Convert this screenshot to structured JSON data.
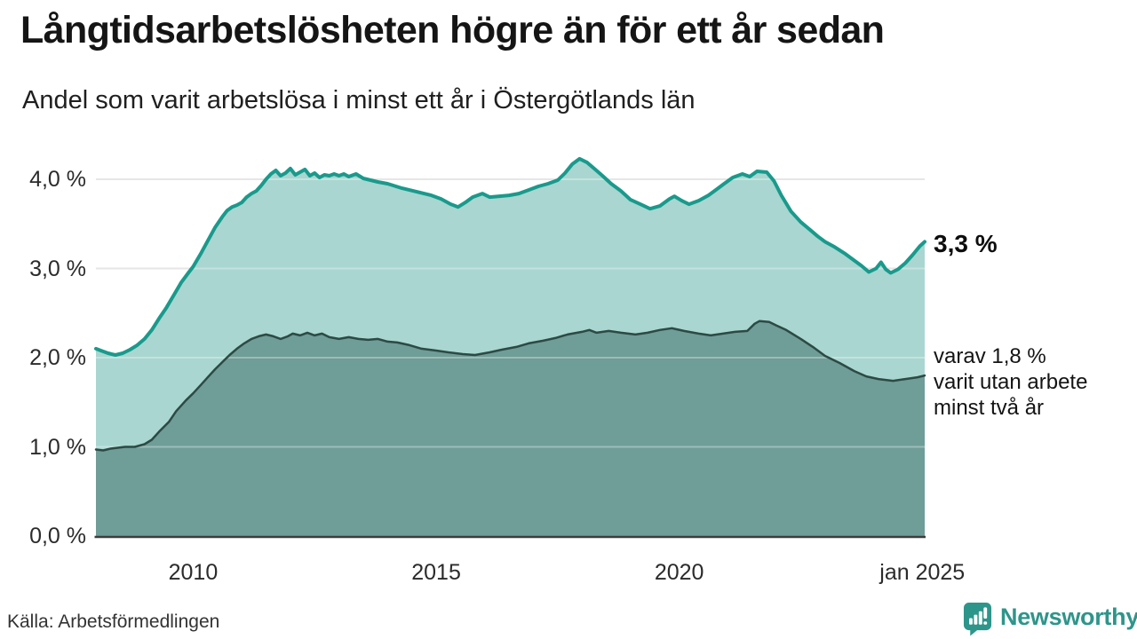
{
  "header": {
    "title": "Långtidsarbetslösheten högre än för ett år sedan",
    "subtitle": "Andel som varit arbetslösa i minst ett år i Östergötlands län"
  },
  "annotations": {
    "total_value_label": "3,3 %",
    "secondary_value_lines": [
      "varav 1,8 %",
      "varit utan arbete",
      "minst två år"
    ]
  },
  "footer": {
    "source": "Källa: Arbetsförmedlingen",
    "brand": "Newsworthy"
  },
  "colors": {
    "total_line": "#199A8C",
    "total_fill": "#A9D6D0",
    "secondary_line": "#2C4A45",
    "secondary_fill": "#6F9D97",
    "gridline": "#DBDBDB",
    "gridline_overlay": "rgba(255,255,255,0.32)",
    "baseline": "#3D3D3D",
    "brand_teal": "#2E958A",
    "title_text": "#151515",
    "axis_text": "#2B2B2B"
  },
  "chart_data": {
    "type": "area",
    "title": "Andel som varit arbetslösa i minst ett år i Östergötlands län",
    "xlabel": "",
    "ylabel": "",
    "x_unit": "year",
    "x_range": [
      2008.0,
      2025.05
    ],
    "ylim": [
      0,
      4.3
    ],
    "grid": true,
    "legend_position": "none",
    "y_ticks": [
      {
        "value": 0,
        "label": "0,0 %"
      },
      {
        "value": 1,
        "label": "1,0 %"
      },
      {
        "value": 2,
        "label": "2,0 %"
      },
      {
        "value": 3,
        "label": "3,0 %"
      },
      {
        "value": 4,
        "label": "4,0 %"
      }
    ],
    "x_ticks": [
      {
        "value": 2010,
        "label": "2010"
      },
      {
        "value": 2015,
        "label": "2015"
      },
      {
        "value": 2020,
        "label": "2020"
      },
      {
        "value": 2025,
        "label": "jan 2025"
      }
    ],
    "series": [
      {
        "id": "total",
        "name": "Arbetslösa minst ett år",
        "end_label": "3,3 %",
        "color": "#199A8C",
        "fill": "#A9D6D0",
        "points": [
          [
            2008.0,
            2.1
          ],
          [
            2008.1,
            2.08
          ],
          [
            2008.25,
            2.05
          ],
          [
            2008.4,
            2.03
          ],
          [
            2008.55,
            2.05
          ],
          [
            2008.7,
            2.09
          ],
          [
            2008.85,
            2.14
          ],
          [
            2009.0,
            2.21
          ],
          [
            2009.15,
            2.31
          ],
          [
            2009.3,
            2.44
          ],
          [
            2009.45,
            2.56
          ],
          [
            2009.6,
            2.7
          ],
          [
            2009.75,
            2.84
          ],
          [
            2009.9,
            2.95
          ],
          [
            2010.0,
            3.02
          ],
          [
            2010.15,
            3.16
          ],
          [
            2010.3,
            3.31
          ],
          [
            2010.45,
            3.46
          ],
          [
            2010.6,
            3.58
          ],
          [
            2010.7,
            3.65
          ],
          [
            2010.8,
            3.69
          ],
          [
            2010.9,
            3.71
          ],
          [
            2011.0,
            3.74
          ],
          [
            2011.1,
            3.8
          ],
          [
            2011.2,
            3.84
          ],
          [
            2011.3,
            3.87
          ],
          [
            2011.4,
            3.93
          ],
          [
            2011.5,
            4.0
          ],
          [
            2011.6,
            4.06
          ],
          [
            2011.7,
            4.1
          ],
          [
            2011.8,
            4.04
          ],
          [
            2011.9,
            4.07
          ],
          [
            2012.0,
            4.12
          ],
          [
            2012.1,
            4.05
          ],
          [
            2012.2,
            4.08
          ],
          [
            2012.3,
            4.11
          ],
          [
            2012.4,
            4.04
          ],
          [
            2012.5,
            4.07
          ],
          [
            2012.6,
            4.02
          ],
          [
            2012.7,
            4.05
          ],
          [
            2012.8,
            4.04
          ],
          [
            2012.9,
            4.06
          ],
          [
            2013.0,
            4.04
          ],
          [
            2013.1,
            4.06
          ],
          [
            2013.2,
            4.03
          ],
          [
            2013.35,
            4.06
          ],
          [
            2013.5,
            4.01
          ],
          [
            2013.65,
            3.99
          ],
          [
            2013.8,
            3.97
          ],
          [
            2014.0,
            3.95
          ],
          [
            2014.3,
            3.9
          ],
          [
            2014.6,
            3.86
          ],
          [
            2014.9,
            3.82
          ],
          [
            2015.1,
            3.78
          ],
          [
            2015.3,
            3.72
          ],
          [
            2015.45,
            3.69
          ],
          [
            2015.6,
            3.74
          ],
          [
            2015.75,
            3.8
          ],
          [
            2015.95,
            3.84
          ],
          [
            2016.1,
            3.8
          ],
          [
            2016.3,
            3.81
          ],
          [
            2016.5,
            3.82
          ],
          [
            2016.7,
            3.84
          ],
          [
            2016.9,
            3.88
          ],
          [
            2017.1,
            3.92
          ],
          [
            2017.3,
            3.95
          ],
          [
            2017.5,
            3.99
          ],
          [
            2017.65,
            4.07
          ],
          [
            2017.8,
            4.17
          ],
          [
            2017.95,
            4.23
          ],
          [
            2018.1,
            4.19
          ],
          [
            2018.25,
            4.12
          ],
          [
            2018.4,
            4.05
          ],
          [
            2018.6,
            3.95
          ],
          [
            2018.8,
            3.87
          ],
          [
            2019.0,
            3.77
          ],
          [
            2019.2,
            3.72
          ],
          [
            2019.4,
            3.67
          ],
          [
            2019.6,
            3.7
          ],
          [
            2019.8,
            3.78
          ],
          [
            2019.9,
            3.81
          ],
          [
            2020.05,
            3.76
          ],
          [
            2020.2,
            3.72
          ],
          [
            2020.4,
            3.76
          ],
          [
            2020.6,
            3.82
          ],
          [
            2020.75,
            3.88
          ],
          [
            2020.9,
            3.94
          ],
          [
            2021.1,
            4.02
          ],
          [
            2021.3,
            4.06
          ],
          [
            2021.45,
            4.03
          ],
          [
            2021.6,
            4.09
          ],
          [
            2021.8,
            4.08
          ],
          [
            2021.95,
            3.98
          ],
          [
            2022.1,
            3.82
          ],
          [
            2022.3,
            3.64
          ],
          [
            2022.5,
            3.52
          ],
          [
            2022.7,
            3.43
          ],
          [
            2022.85,
            3.36
          ],
          [
            2023.0,
            3.3
          ],
          [
            2023.2,
            3.24
          ],
          [
            2023.4,
            3.17
          ],
          [
            2023.6,
            3.09
          ],
          [
            2023.75,
            3.03
          ],
          [
            2023.9,
            2.96
          ],
          [
            2024.05,
            3.0
          ],
          [
            2024.15,
            3.07
          ],
          [
            2024.25,
            2.99
          ],
          [
            2024.35,
            2.95
          ],
          [
            2024.5,
            2.99
          ],
          [
            2024.65,
            3.06
          ],
          [
            2024.8,
            3.15
          ],
          [
            2024.95,
            3.25
          ],
          [
            2025.05,
            3.3
          ]
        ]
      },
      {
        "id": "two-years",
        "name": "varav utan arbete minst två år",
        "end_label": "1,8 %",
        "color": "#2C4A45",
        "fill": "#6F9D97",
        "points": [
          [
            2008.0,
            0.97
          ],
          [
            2008.15,
            0.96
          ],
          [
            2008.3,
            0.98
          ],
          [
            2008.45,
            0.99
          ],
          [
            2008.6,
            1.0
          ],
          [
            2008.8,
            1.0
          ],
          [
            2009.0,
            1.03
          ],
          [
            2009.15,
            1.08
          ],
          [
            2009.3,
            1.17
          ],
          [
            2009.5,
            1.28
          ],
          [
            2009.65,
            1.4
          ],
          [
            2009.85,
            1.52
          ],
          [
            2010.0,
            1.6
          ],
          [
            2010.15,
            1.69
          ],
          [
            2010.3,
            1.78
          ],
          [
            2010.45,
            1.87
          ],
          [
            2010.6,
            1.95
          ],
          [
            2010.75,
            2.03
          ],
          [
            2010.9,
            2.1
          ],
          [
            2011.05,
            2.16
          ],
          [
            2011.2,
            2.21
          ],
          [
            2011.35,
            2.24
          ],
          [
            2011.5,
            2.26
          ],
          [
            2011.65,
            2.24
          ],
          [
            2011.8,
            2.21
          ],
          [
            2011.95,
            2.24
          ],
          [
            2012.05,
            2.27
          ],
          [
            2012.2,
            2.25
          ],
          [
            2012.35,
            2.28
          ],
          [
            2012.5,
            2.25
          ],
          [
            2012.65,
            2.27
          ],
          [
            2012.8,
            2.23
          ],
          [
            2013.0,
            2.21
          ],
          [
            2013.2,
            2.23
          ],
          [
            2013.4,
            2.21
          ],
          [
            2013.6,
            2.2
          ],
          [
            2013.8,
            2.21
          ],
          [
            2014.0,
            2.18
          ],
          [
            2014.2,
            2.17
          ],
          [
            2014.45,
            2.14
          ],
          [
            2014.7,
            2.1
          ],
          [
            2015.0,
            2.08
          ],
          [
            2015.25,
            2.06
          ],
          [
            2015.55,
            2.04
          ],
          [
            2015.8,
            2.03
          ],
          [
            2016.1,
            2.06
          ],
          [
            2016.35,
            2.09
          ],
          [
            2016.65,
            2.12
          ],
          [
            2016.9,
            2.16
          ],
          [
            2017.2,
            2.19
          ],
          [
            2017.45,
            2.22
          ],
          [
            2017.7,
            2.26
          ],
          [
            2018.0,
            2.29
          ],
          [
            2018.15,
            2.31
          ],
          [
            2018.3,
            2.28
          ],
          [
            2018.55,
            2.3
          ],
          [
            2018.8,
            2.28
          ],
          [
            2019.1,
            2.26
          ],
          [
            2019.35,
            2.28
          ],
          [
            2019.6,
            2.31
          ],
          [
            2019.85,
            2.33
          ],
          [
            2020.1,
            2.3
          ],
          [
            2020.4,
            2.27
          ],
          [
            2020.65,
            2.25
          ],
          [
            2020.9,
            2.27
          ],
          [
            2021.15,
            2.29
          ],
          [
            2021.4,
            2.3
          ],
          [
            2021.55,
            2.38
          ],
          [
            2021.65,
            2.41
          ],
          [
            2021.85,
            2.4
          ],
          [
            2022.0,
            2.36
          ],
          [
            2022.2,
            2.31
          ],
          [
            2022.5,
            2.21
          ],
          [
            2022.75,
            2.12
          ],
          [
            2023.0,
            2.02
          ],
          [
            2023.3,
            1.94
          ],
          [
            2023.6,
            1.85
          ],
          [
            2023.85,
            1.79
          ],
          [
            2024.1,
            1.76
          ],
          [
            2024.4,
            1.74
          ],
          [
            2024.65,
            1.76
          ],
          [
            2024.9,
            1.78
          ],
          [
            2025.05,
            1.8
          ]
        ]
      }
    ]
  }
}
